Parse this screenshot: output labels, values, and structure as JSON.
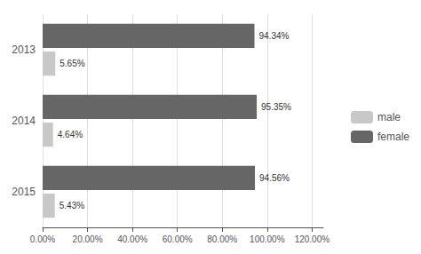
{
  "chart_data": {
    "type": "bar",
    "orientation": "horizontal",
    "categories": [
      "2015",
      "2014",
      "2013"
    ],
    "series": [
      {
        "name": "male",
        "color": "#c8c8c8",
        "values": [
          5.43,
          4.64,
          5.65
        ],
        "value_labels": [
          "5.43%",
          "4.64%",
          "5.65%"
        ]
      },
      {
        "name": "female",
        "color": "#666666",
        "values": [
          94.56,
          95.35,
          94.34
        ],
        "value_labels": [
          "94.56%",
          "95.35%",
          "94.34%"
        ]
      }
    ],
    "xlim": [
      0,
      125
    ],
    "xticks": [
      {
        "value": 0,
        "label": "0.00%"
      },
      {
        "value": 20,
        "label": "20.00%"
      },
      {
        "value": 40,
        "label": "40.00%"
      },
      {
        "value": 60,
        "label": "60.00%"
      },
      {
        "value": 80,
        "label": "80.00%"
      },
      {
        "value": 100,
        "label": "100.00%"
      },
      {
        "value": 120,
        "label": "120.00%"
      }
    ],
    "grid": true,
    "legend": "right",
    "data_labels": true
  }
}
